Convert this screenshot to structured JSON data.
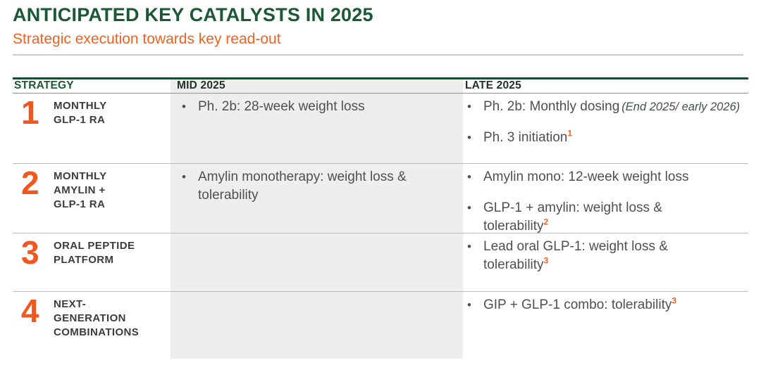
{
  "page": {
    "title": "ANTICIPATED KEY CATALYSTS IN 2025",
    "subtitle": "Strategic execution towards key read-out"
  },
  "colors": {
    "title_green": "#1b5836",
    "accent_orange": "#f1611f",
    "number_orange": "#f1571f",
    "body_text": "#4f4f4f",
    "strategy_label_text": "#3c3c3c",
    "mid_column_bg": "#eeeeee",
    "table_top_bar": "#1b4a33"
  },
  "table": {
    "bullet_char": "•",
    "headers": [
      {
        "label": "STRATEGY"
      },
      {
        "label": "MID 2025"
      },
      {
        "label": "LATE 2025"
      }
    ],
    "rows": [
      {
        "number": "1",
        "strategy_lines": [
          "MONTHLY",
          "GLP-1 RA"
        ],
        "mid": [
          {
            "lines": [
              "Ph. 2b: 28-week weight loss"
            ]
          }
        ],
        "late": [
          {
            "lines": [
              "Ph. 2b: Monthly dosing"
            ],
            "note": "(End 2025/ early 2026)"
          },
          {
            "lines": [
              "Ph. 3 initiation"
            ],
            "sup": "1"
          }
        ]
      },
      {
        "number": "2",
        "strategy_lines": [
          "MONTHLY",
          "AMYLIN +",
          "GLP-1 RA"
        ],
        "mid": [
          {
            "lines": [
              "Amylin monotherapy: weight loss &",
              "tolerability"
            ]
          }
        ],
        "late": [
          {
            "lines": [
              "Amylin mono: 12-week weight loss"
            ]
          },
          {
            "lines": [
              "GLP-1 + amylin: weight loss &",
              "tolerability"
            ],
            "sup": "2"
          }
        ]
      },
      {
        "number": "3",
        "strategy_lines": [
          "ORAL PEPTIDE",
          "PLATFORM"
        ],
        "mid": [],
        "late": [
          {
            "lines": [
              "Lead oral GLP-1: weight loss &",
              "tolerability"
            ],
            "sup": "3"
          }
        ]
      },
      {
        "number": "4",
        "strategy_lines": [
          "NEXT-",
          "GENERATION",
          "COMBINATIONS"
        ],
        "mid": [],
        "late": [
          {
            "lines": [
              "GIP + GLP-1 combo: tolerability"
            ],
            "sup": "3"
          }
        ]
      }
    ]
  }
}
